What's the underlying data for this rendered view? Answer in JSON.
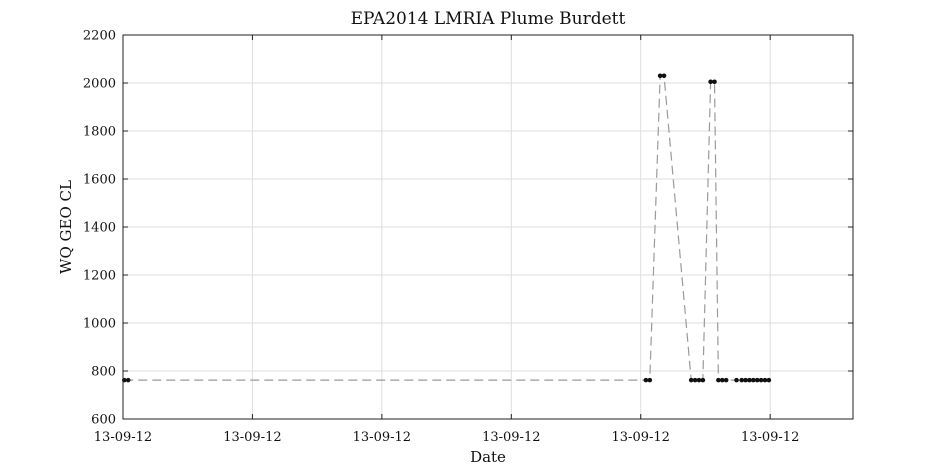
{
  "chart_data": {
    "type": "line",
    "title": "EPA2014 LMRIA Plume Burdett",
    "xlabel": "Date",
    "ylabel": "WQ GEO CL",
    "ylim": [
      600,
      2200
    ],
    "yticks": [
      600,
      800,
      1000,
      1200,
      1400,
      1600,
      1800,
      2000,
      2200
    ],
    "xlim": [
      0,
      5.64
    ],
    "xticks": [
      0,
      1,
      2,
      3,
      4,
      5
    ],
    "xtick_labels": [
      "13-09-12",
      "13-09-12",
      "13-09-12",
      "13-09-12",
      "13-09-12",
      "13-09-12"
    ],
    "grid": true,
    "line_style": "dashed",
    "line_color": "#9a9a9a",
    "marker_color": "#111111",
    "series": [
      {
        "x": [
          0.01,
          0.04,
          4.04,
          4.07,
          4.15,
          4.18,
          4.39,
          4.42,
          4.45,
          4.48,
          4.54,
          4.57,
          4.6,
          4.63,
          4.66,
          4.74,
          4.78,
          4.81,
          4.84,
          4.87,
          4.9,
          4.93,
          4.96,
          4.99
        ],
        "y": [
          762,
          762,
          762,
          762,
          2030,
          2030,
          762,
          762,
          762,
          762,
          2005,
          2005,
          762,
          762,
          762,
          762,
          762,
          762,
          762,
          762,
          762,
          762,
          762,
          762
        ]
      }
    ]
  }
}
